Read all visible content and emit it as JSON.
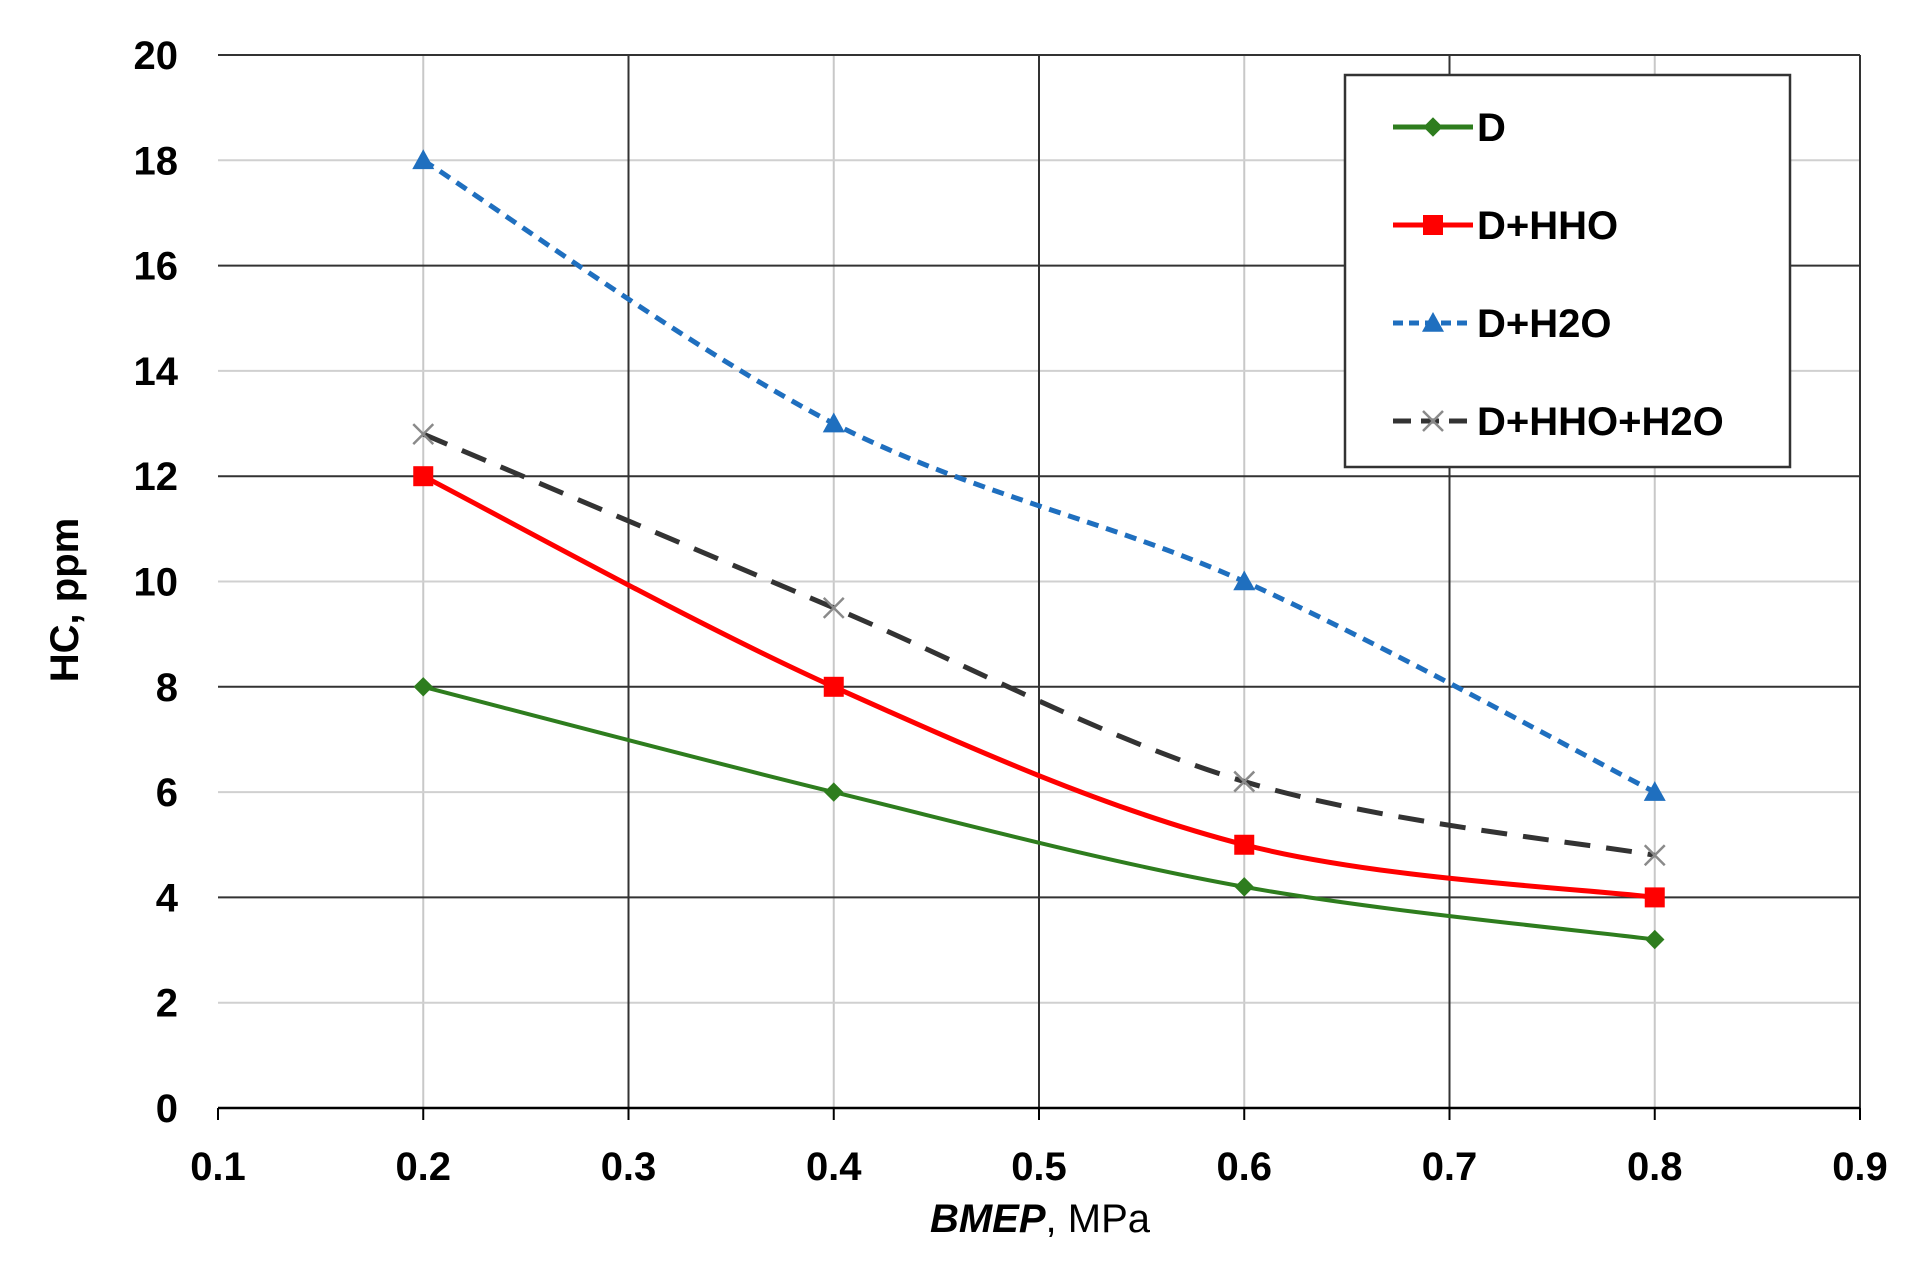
{
  "chart_data": {
    "type": "line",
    "title": "",
    "xlabel_italic": "BMEP",
    "xlabel_rest": ", MPa",
    "ylabel": "HC, ppm",
    "xlim": [
      0.1,
      0.9
    ],
    "ylim": [
      0,
      20
    ],
    "x_ticks": [
      0.1,
      0.2,
      0.3,
      0.4,
      0.5,
      0.6,
      0.7,
      0.8,
      0.9
    ],
    "x_tick_labels": [
      "0.1",
      "0.2",
      "0.3",
      "0.4",
      "0.5",
      "0.6",
      "0.7",
      "0.8",
      "0.9"
    ],
    "y_ticks": [
      0,
      2,
      4,
      6,
      8,
      10,
      12,
      14,
      16,
      18,
      20
    ],
    "y_tick_labels": [
      "0",
      "2",
      "4",
      "6",
      "8",
      "10",
      "12",
      "14",
      "16",
      "18",
      "20"
    ],
    "x": [
      0.2,
      0.4,
      0.6,
      0.8
    ],
    "legend_position": "top-right",
    "series": [
      {
        "name": "D",
        "values": [
          8,
          6,
          4.2,
          3.2
        ],
        "color": "#2e7d1e",
        "marker": "diamond",
        "dash": "solid"
      },
      {
        "name": "D+HHO",
        "values": [
          12,
          8,
          5,
          4
        ],
        "color": "#ff0000",
        "marker": "square",
        "dash": "solid"
      },
      {
        "name": "D+H2O",
        "values": [
          18,
          13,
          10,
          6
        ],
        "color": "#1f6fbf",
        "marker": "triangle",
        "dash": "dotted"
      },
      {
        "name": "D+HHO+H2O",
        "values": [
          12.8,
          9.5,
          6.2,
          4.8
        ],
        "color": "#333333",
        "marker": "x",
        "dash": "dashed"
      }
    ]
  }
}
